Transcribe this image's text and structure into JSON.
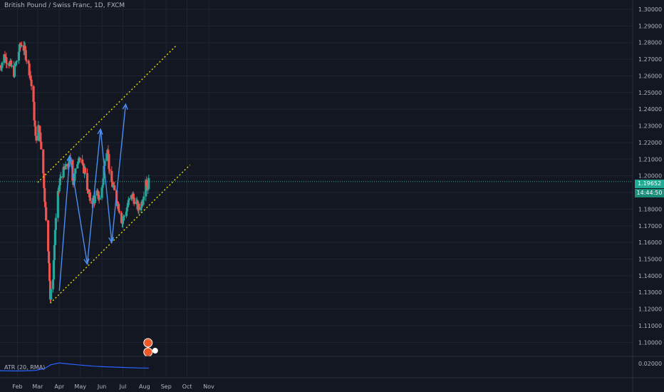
{
  "header": {
    "title": "British Pound / Swiss Franc, 1D, FXCM"
  },
  "indicator": {
    "label": "ATR (20, RMA)",
    "value_label": "0.02000"
  },
  "price_axis": {
    "ticks": [
      "1.30000",
      "1.29000",
      "1.28000",
      "1.27000",
      "1.26000",
      "1.25000",
      "1.24000",
      "1.23000",
      "1.22000",
      "1.21000",
      "1.20000",
      "1.19000",
      "1.18000",
      "1.17000",
      "1.16000",
      "1.15000",
      "1.14000",
      "1.13000",
      "1.12000",
      "1.11000",
      "1.10000"
    ],
    "last_price": "1.19652",
    "countdown": "14:44:50"
  },
  "time_axis": {
    "ticks": [
      "Feb",
      "Mar",
      "Apr",
      "May",
      "Jun",
      "Jul",
      "Aug",
      "Sep",
      "Oct",
      "Nov"
    ]
  },
  "colors": {
    "background": "#131722",
    "up": "#26a69a",
    "down": "#ef5350",
    "channel": "#e5e000",
    "arrows": "#4b8df0",
    "atr_line": "#2962ff",
    "grid": "#1f2433"
  },
  "chart_data": {
    "type": "candlestick",
    "instrument": "British Pound / Swiss Franc, 1D, FXCM",
    "ylim": [
      1.095,
      1.303
    ],
    "x_range": [
      "2020-01-07",
      "2020-11-20"
    ],
    "y_scale": "linear",
    "grid": true,
    "price_path": [
      [
        "2020-01-07",
        1.265
      ],
      [
        "2020-01-13",
        1.272
      ],
      [
        "2020-01-20",
        1.268
      ],
      [
        "2020-01-27",
        1.262
      ],
      [
        "2020-02-03",
        1.275
      ],
      [
        "2020-02-07",
        1.28
      ],
      [
        "2020-02-12",
        1.274
      ],
      [
        "2020-02-17",
        1.266
      ],
      [
        "2020-02-20",
        1.258
      ],
      [
        "2020-02-24",
        1.242
      ],
      [
        "2020-02-27",
        1.222
      ],
      [
        "2020-03-03",
        1.23
      ],
      [
        "2020-03-06",
        1.218
      ],
      [
        "2020-03-10",
        1.195
      ],
      [
        "2020-03-13",
        1.172
      ],
      [
        "2020-03-17",
        1.15
      ],
      [
        "2020-03-19",
        1.126
      ],
      [
        "2020-03-23",
        1.14
      ],
      [
        "2020-03-26",
        1.168
      ],
      [
        "2020-03-30",
        1.188
      ],
      [
        "2020-04-03",
        1.2
      ],
      [
        "2020-04-08",
        1.203
      ],
      [
        "2020-04-14",
        1.207
      ],
      [
        "2020-04-17",
        1.21
      ],
      [
        "2020-04-21",
        1.196
      ],
      [
        "2020-04-24",
        1.202
      ],
      [
        "2020-04-29",
        1.213
      ],
      [
        "2020-05-04",
        1.205
      ],
      [
        "2020-05-08",
        1.203
      ],
      [
        "2020-05-12",
        1.19
      ],
      [
        "2020-05-15",
        1.186
      ],
      [
        "2020-05-20",
        1.185
      ],
      [
        "2020-05-25",
        1.189
      ],
      [
        "2020-05-29",
        1.186
      ],
      [
        "2020-06-03",
        1.198
      ],
      [
        "2020-06-05",
        1.212
      ],
      [
        "2020-06-09",
        1.218
      ],
      [
        "2020-06-12",
        1.2
      ],
      [
        "2020-06-17",
        1.193
      ],
      [
        "2020-06-22",
        1.186
      ],
      [
        "2020-06-26",
        1.18
      ],
      [
        "2020-06-30",
        1.172
      ],
      [
        "2020-07-06",
        1.18
      ],
      [
        "2020-07-10",
        1.185
      ],
      [
        "2020-07-15",
        1.188
      ],
      [
        "2020-07-20",
        1.183
      ],
      [
        "2020-07-24",
        1.18
      ],
      [
        "2020-07-29",
        1.185
      ],
      [
        "2020-08-03",
        1.199
      ],
      [
        "2020-08-05",
        1.192
      ],
      [
        "2020-08-07",
        1.19652
      ]
    ],
    "drawings": {
      "upper_channel_line": [
        [
          "2020-03-01",
          1.196
        ],
        [
          "2020-09-15",
          1.278
        ]
      ],
      "lower_channel_line": [
        [
          "2020-03-19",
          1.1235
        ],
        [
          "2020-10-05",
          1.2065
        ]
      ],
      "projection_arrows": [
        [
          [
            "2020-04-01",
            1.131
          ],
          [
            "2020-04-16",
            1.212
          ]
        ],
        [
          [
            "2020-04-16",
            1.212
          ],
          [
            "2020-05-11",
            1.147
          ]
        ],
        [
          [
            "2020-05-11",
            1.147
          ],
          [
            "2020-05-30",
            1.228
          ]
        ],
        [
          [
            "2020-05-30",
            1.228
          ],
          [
            "2020-06-15",
            1.16
          ]
        ],
        [
          [
            "2020-06-15",
            1.16
          ],
          [
            "2020-07-05",
            1.243
          ]
        ]
      ],
      "horizontal_price_line": 1.19652
    },
    "atr": {
      "label": "ATR (20, RMA)",
      "series": [
        [
          "2020-01-07",
          0.0082
        ],
        [
          "2020-02-01",
          0.0078
        ],
        [
          "2020-02-25",
          0.0085
        ],
        [
          "2020-03-10",
          0.011
        ],
        [
          "2020-03-20",
          0.017
        ],
        [
          "2020-04-01",
          0.0195
        ],
        [
          "2020-04-15",
          0.018
        ],
        [
          "2020-05-01",
          0.0165
        ],
        [
          "2020-05-20",
          0.0148
        ],
        [
          "2020-06-10",
          0.0138
        ],
        [
          "2020-07-01",
          0.013
        ],
        [
          "2020-07-25",
          0.0122
        ],
        [
          "2020-08-07",
          0.012
        ]
      ]
    }
  }
}
